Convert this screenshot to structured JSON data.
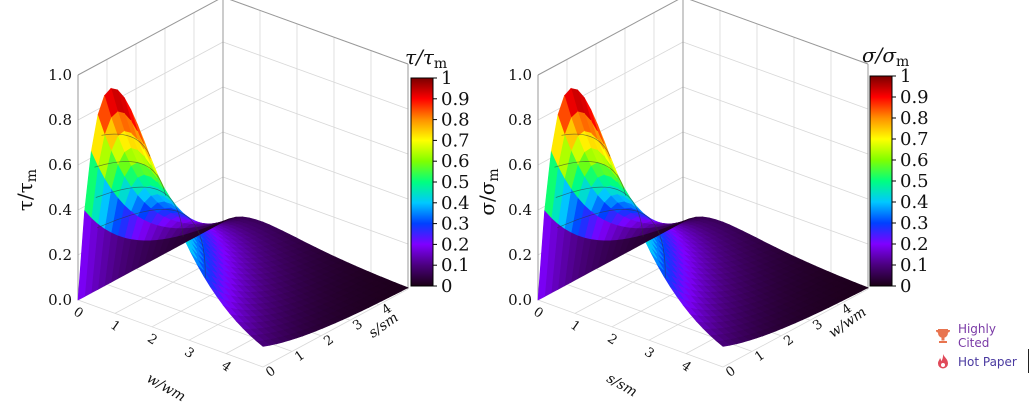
{
  "chart_data": [
    {
      "type": "surface3d",
      "zlabel": "τ/τm",
      "zlabel_main": "τ/τ",
      "zlabel_sub": "m",
      "xlabel": "w/wm",
      "ylabel": "s/sm",
      "xlim": [
        0,
        5
      ],
      "ylim": [
        0,
        5
      ],
      "zlim": [
        0,
        1
      ],
      "x_ticks": [
        "0",
        "1",
        "2",
        "3",
        "4"
      ],
      "y_ticks": [
        "0",
        "1",
        "2",
        "3",
        "4"
      ],
      "z_ticks": [
        "0.0",
        "0.2",
        "0.4",
        "0.6",
        "0.8",
        "1.0"
      ],
      "surface": "z = (x / xm) · exp(1 − x / xm) · exp(−y / ym), peak 1 at x = xm, y = 0",
      "peak": {
        "x": 1,
        "y": 0,
        "z": 1
      },
      "colorbar": {
        "title_main": "τ/τ",
        "title_sub": "m",
        "ticks": [
          "0",
          "0.1",
          "0.2",
          "0.3",
          "0.4",
          "0.5",
          "0.6",
          "0.7",
          "0.8",
          "0.9",
          "1"
        ],
        "colormap": [
          "#1a0015",
          "#4b007f",
          "#7f00ff",
          "#0040ff",
          "#00c8ff",
          "#00ff80",
          "#80ff00",
          "#ffff00",
          "#ff9000",
          "#ff0000",
          "#7a0000"
        ]
      }
    },
    {
      "type": "surface3d",
      "zlabel": "σ/σm",
      "zlabel_main": "σ/σ",
      "zlabel_sub": "m",
      "xlabel": "s/sm",
      "ylabel": "w/wm",
      "xlim": [
        0,
        5
      ],
      "ylim": [
        0,
        5
      ],
      "zlim": [
        0,
        1
      ],
      "x_ticks": [
        "0",
        "1",
        "2",
        "3",
        "4"
      ],
      "y_ticks": [
        "0",
        "1",
        "2",
        "3",
        "4"
      ],
      "z_ticks": [
        "0.0",
        "0.2",
        "0.4",
        "0.6",
        "0.8",
        "1.0"
      ],
      "surface": "z = (x / xm) · exp(1 − x / xm) · exp(−y / ym), peak 1 at x = xm, y = 0",
      "peak": {
        "x": 1,
        "y": 0,
        "z": 1
      },
      "colorbar": {
        "title_main": "σ/σ",
        "title_sub": "m",
        "ticks": [
          "0",
          "0.1",
          "0.2",
          "0.3",
          "0.4",
          "0.5",
          "0.6",
          "0.7",
          "0.8",
          "0.9",
          "1"
        ],
        "colormap": [
          "#1a0015",
          "#4b007f",
          "#7f00ff",
          "#0040ff",
          "#00c8ff",
          "#00ff80",
          "#80ff00",
          "#ffff00",
          "#ff9000",
          "#ff0000",
          "#7a0000"
        ]
      }
    }
  ],
  "badges": {
    "highly_cited": "Highly Cited",
    "hot_paper": "Hot Paper",
    "trophy_color": "#e8744f",
    "flame_color": "#e04a5a"
  }
}
